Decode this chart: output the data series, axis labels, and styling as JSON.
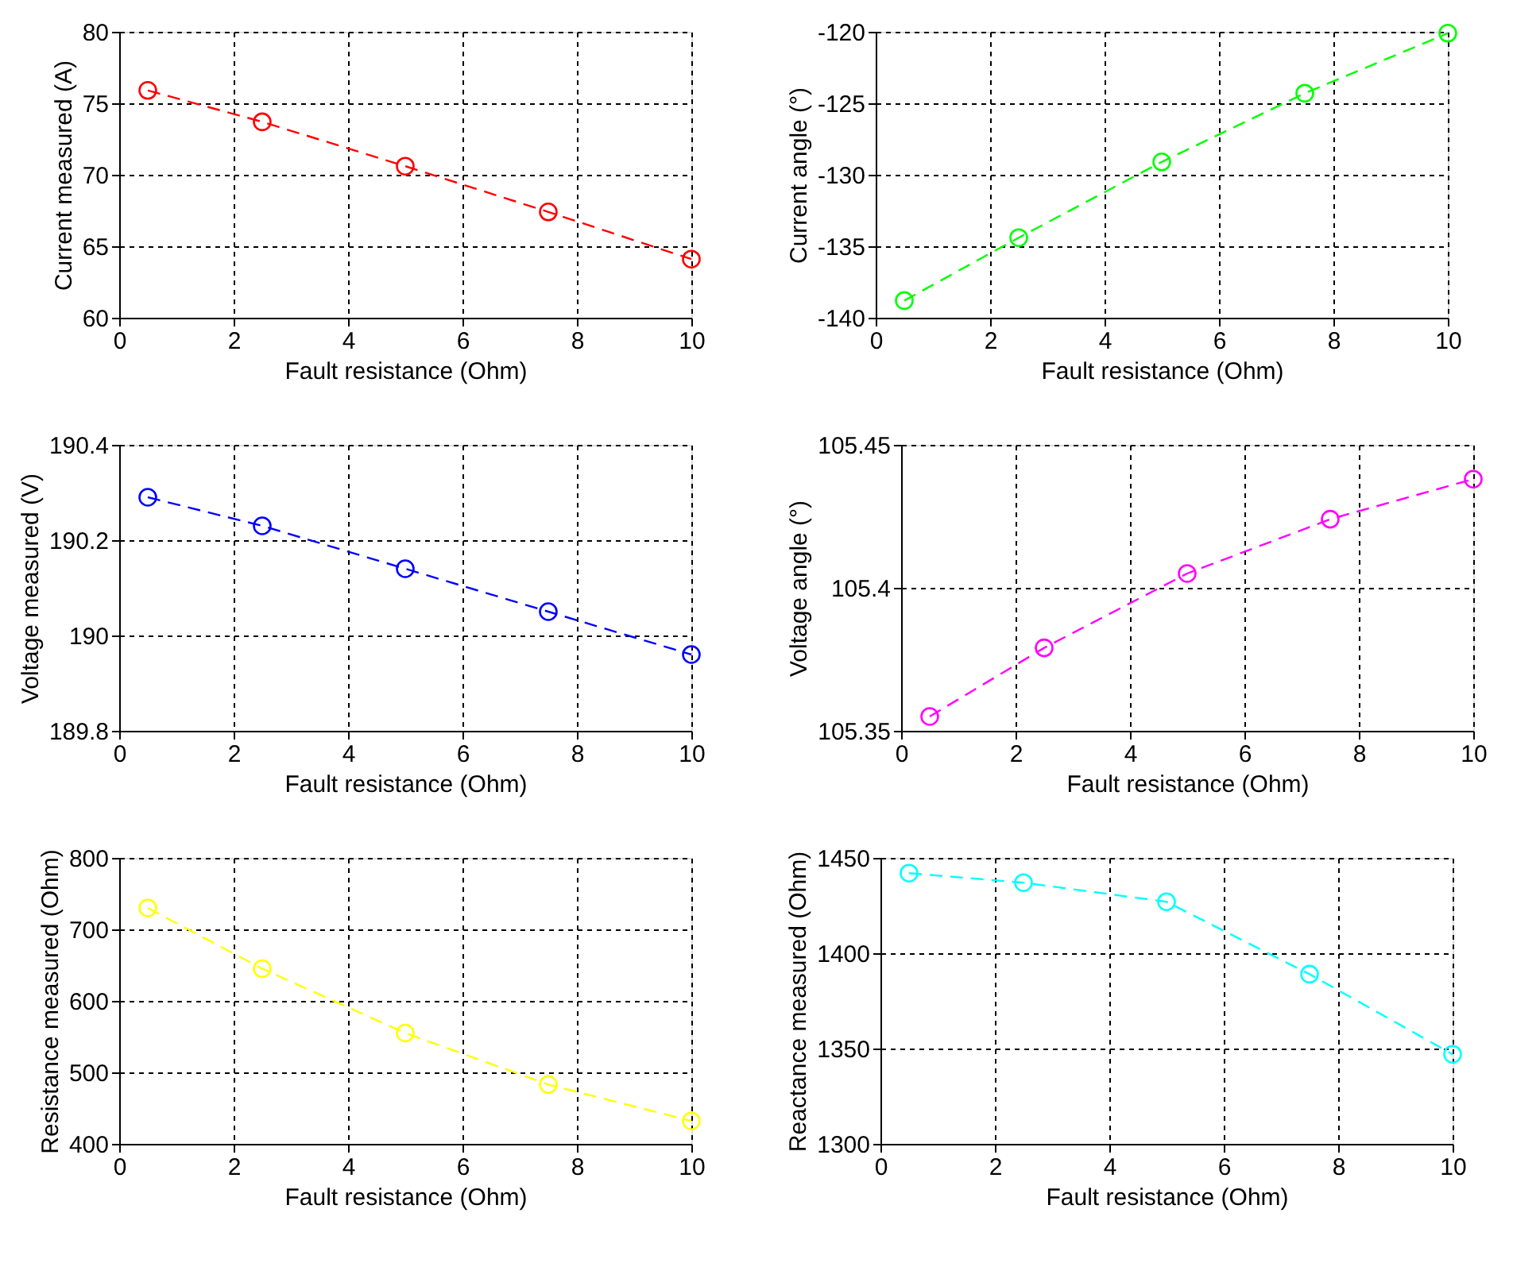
{
  "chart_data": [
    {
      "type": "line",
      "xlabel": "Fault resistance (Ohm)",
      "ylabel": "Current measured (A)",
      "x": [
        0.5,
        2.5,
        5,
        7.5,
        10
      ],
      "xlim": [
        0,
        10
      ],
      "xticks": [
        0,
        2,
        4,
        6,
        8,
        10
      ],
      "ylim": [
        60,
        80
      ],
      "yticks": [
        60,
        65,
        70,
        75,
        80
      ],
      "grid": true,
      "marker": "circle",
      "line_style": "dashed",
      "series": [
        {
          "color": "#ff0000",
          "values": [
            75.9,
            73.7,
            70.6,
            67.4,
            64.1
          ]
        }
      ]
    },
    {
      "type": "line",
      "xlabel": "Fault resistance (Ohm)",
      "ylabel": "Current angle (°)",
      "x": [
        0.5,
        2.5,
        5,
        7.5,
        10
      ],
      "xlim": [
        0,
        10
      ],
      "xticks": [
        0,
        2,
        4,
        6,
        8,
        10
      ],
      "ylim": [
        -140,
        -120
      ],
      "yticks": [
        -140,
        -135,
        -130,
        -125,
        -120
      ],
      "grid": true,
      "marker": "circle",
      "line_style": "dashed",
      "series": [
        {
          "color": "#00ff00",
          "values": [
            -138.8,
            -134.4,
            -129.1,
            -124.3,
            -120.1
          ]
        }
      ]
    },
    {
      "type": "line",
      "xlabel": "Fault resistance (Ohm)",
      "ylabel": "Voltage measured (V)",
      "x": [
        0.5,
        2.5,
        5,
        7.5,
        10
      ],
      "xlim": [
        0,
        10
      ],
      "xticks": [
        0,
        2,
        4,
        6,
        8,
        10
      ],
      "ylim": [
        189.8,
        190.4
      ],
      "yticks": [
        189.8,
        190,
        190.2,
        190.4
      ],
      "grid": true,
      "marker": "circle",
      "line_style": "dashed",
      "series": [
        {
          "color": "#0000ff",
          "values": [
            190.29,
            190.23,
            190.14,
            190.05,
            189.96
          ]
        }
      ]
    },
    {
      "type": "line",
      "xlabel": "Fault resistance (Ohm)",
      "ylabel": "Voltage angle (°)",
      "x": [
        0.5,
        2.5,
        5,
        7.5,
        10
      ],
      "xlim": [
        0,
        10
      ],
      "xticks": [
        0,
        2,
        4,
        6,
        8,
        10
      ],
      "ylim": [
        105.35,
        105.45
      ],
      "yticks": [
        105.35,
        105.4,
        105.45
      ],
      "grid": true,
      "marker": "circle",
      "line_style": "dashed",
      "series": [
        {
          "color": "#ff00ff",
          "values": [
            105.355,
            105.379,
            105.405,
            105.424,
            105.438
          ]
        }
      ]
    },
    {
      "type": "line",
      "xlabel": "Fault resistance (Ohm)",
      "ylabel": "Resistance measured (Ohm)",
      "x": [
        0.5,
        2.5,
        5,
        7.5,
        10
      ],
      "xlim": [
        0,
        10
      ],
      "xticks": [
        0,
        2,
        4,
        6,
        8,
        10
      ],
      "ylim": [
        400,
        800
      ],
      "yticks": [
        400,
        500,
        600,
        700,
        800
      ],
      "grid": true,
      "marker": "circle",
      "line_style": "dashed",
      "series": [
        {
          "color": "#ffff00",
          "values": [
            730,
            645,
            555,
            483,
            432
          ]
        }
      ]
    },
    {
      "type": "line",
      "xlabel": "Fault resistance (Ohm)",
      "ylabel": "Reactance measured (Ohm)",
      "x": [
        0.5,
        2.5,
        5,
        7.5,
        10
      ],
      "xlim": [
        0,
        10
      ],
      "xticks": [
        0,
        2,
        4,
        6,
        8,
        10
      ],
      "ylim": [
        1300,
        1450
      ],
      "yticks": [
        1300,
        1350,
        1400,
        1450
      ],
      "grid": true,
      "marker": "circle",
      "line_style": "dashed",
      "series": [
        {
          "color": "#00ffff",
          "values": [
            1442,
            1437,
            1427,
            1389,
            1347
          ]
        }
      ]
    }
  ]
}
